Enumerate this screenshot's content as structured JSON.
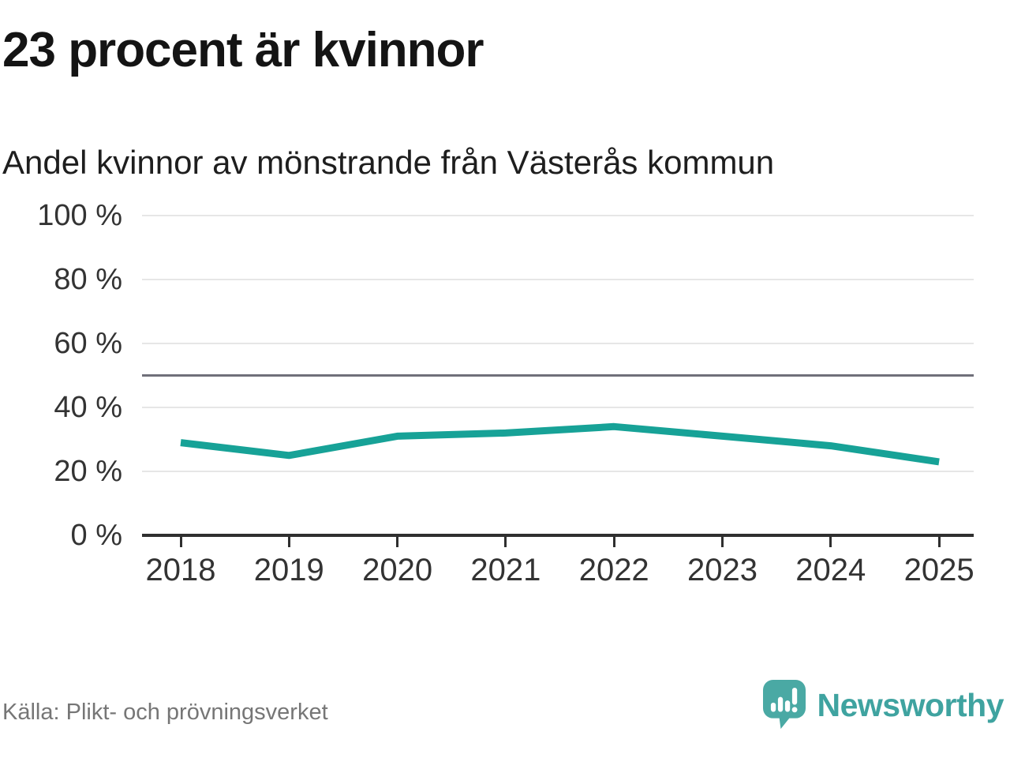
{
  "header": {
    "title": "23 procent är kvinnor",
    "subtitle": "Andel kvinnor av mönstrande från Västerås kommun"
  },
  "chart_data": {
    "type": "line",
    "x": [
      "2018",
      "2019",
      "2020",
      "2021",
      "2022",
      "2023",
      "2024",
      "2025"
    ],
    "series": [
      {
        "name": "Andel kvinnor av mönstrande",
        "values": [
          29,
          25,
          31,
          32,
          34,
          31,
          28,
          23
        ]
      }
    ],
    "unit": "%",
    "title": "23 procent är kvinnor",
    "subtitle": "Andel kvinnor av mönstrande från Västerås kommun",
    "xlabel": "",
    "ylabel": "",
    "ylim": [
      0,
      100
    ],
    "y_tick_values": [
      0,
      20,
      40,
      60,
      80,
      100
    ],
    "y_tick_labels": [
      "0 %",
      "20 %",
      "40 %",
      "60 %",
      "80 %",
      "100 %"
    ],
    "reference_line_value": 50,
    "grid": true,
    "legend_position": "none",
    "line_color": "#17a297",
    "reference_line_color": "#70707a",
    "grid_color": "#e6e6e6",
    "axis_color": "#2f2f2f"
  },
  "footer": {
    "source": "Källa: Plikt- och prövningsverket",
    "brand_name": "Newsworthy",
    "brand_color": "#45a8a2"
  }
}
